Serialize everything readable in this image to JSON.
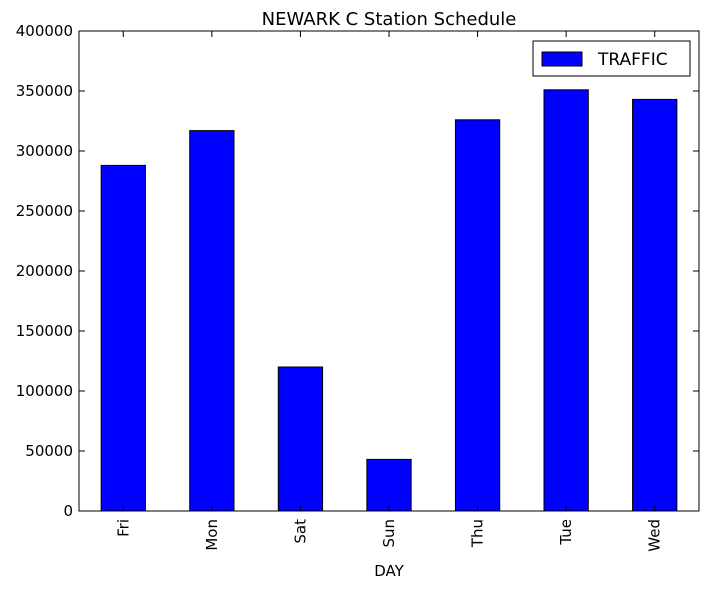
{
  "chart_data": {
    "type": "bar",
    "title": "NEWARK C Station Schedule",
    "xlabel": "DAY",
    "ylabel": "",
    "categories": [
      "Fri",
      "Mon",
      "Sat",
      "Sun",
      "Thu",
      "Tue",
      "Wed"
    ],
    "series": [
      {
        "name": "TRAFFIC",
        "color": "#0000ff",
        "values": [
          288000,
          317000,
          120000,
          43000,
          326000,
          351000,
          343000
        ]
      }
    ],
    "ylim": [
      0,
      400000
    ],
    "yticks": [
      0,
      50000,
      100000,
      150000,
      200000,
      250000,
      300000,
      350000,
      400000
    ],
    "ytick_labels": [
      "0",
      "50000",
      "100000",
      "150000",
      "200000",
      "250000",
      "300000",
      "350000",
      "400000"
    ],
    "grid": false,
    "legend_position": "top-right",
    "xtick_rotation": "vertical"
  }
}
